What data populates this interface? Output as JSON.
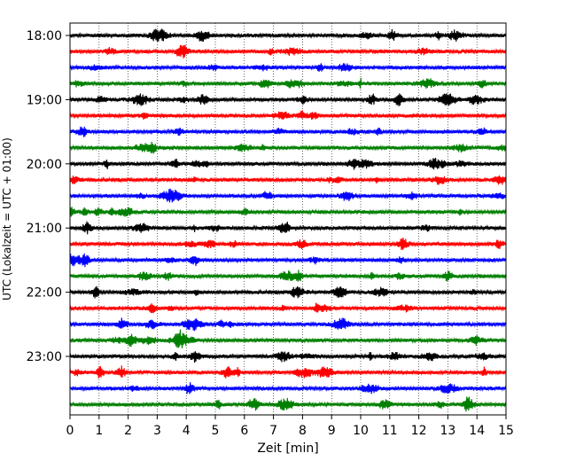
{
  "chart_data": {
    "type": "line",
    "title": "",
    "xlabel": "Zeit  [min]",
    "ylabel": "UTC (Lokalzeit = UTC + 01:00)",
    "xlim": [
      0,
      15
    ],
    "x_ticks": [
      "0",
      "1",
      "2",
      "3",
      "4",
      "5",
      "6",
      "7",
      "8",
      "9",
      "10",
      "11",
      "12",
      "13",
      "14",
      "15"
    ],
    "y_ticks": [
      "18:00",
      "19:00",
      "20:00",
      "21:00",
      "22:00",
      "23:00"
    ],
    "grid": {
      "x": true,
      "y": false,
      "style": "dotted"
    },
    "legend": "none",
    "row_interval_minutes": 15,
    "start_time": "18:00",
    "trace_colors": [
      "#000000",
      "#ff0000",
      "#0000ff",
      "#008000"
    ],
    "series": [
      {
        "time": "18:00",
        "color": "#000000"
      },
      {
        "time": "18:15",
        "color": "#ff0000"
      },
      {
        "time": "18:30",
        "color": "#0000ff"
      },
      {
        "time": "18:45",
        "color": "#008000"
      },
      {
        "time": "19:00",
        "color": "#000000"
      },
      {
        "time": "19:15",
        "color": "#ff0000"
      },
      {
        "time": "19:30",
        "color": "#0000ff"
      },
      {
        "time": "19:45",
        "color": "#008000"
      },
      {
        "time": "20:00",
        "color": "#000000"
      },
      {
        "time": "20:15",
        "color": "#ff0000"
      },
      {
        "time": "20:30",
        "color": "#0000ff"
      },
      {
        "time": "20:45",
        "color": "#008000"
      },
      {
        "time": "21:00",
        "color": "#000000"
      },
      {
        "time": "21:15",
        "color": "#ff0000"
      },
      {
        "time": "21:30",
        "color": "#0000ff"
      },
      {
        "time": "21:45",
        "color": "#008000"
      },
      {
        "time": "22:00",
        "color": "#000000"
      },
      {
        "time": "22:15",
        "color": "#ff0000"
      },
      {
        "time": "22:30",
        "color": "#0000ff"
      },
      {
        "time": "22:45",
        "color": "#008000"
      },
      {
        "time": "23:00",
        "color": "#000000"
      },
      {
        "time": "23:15",
        "color": "#ff0000"
      },
      {
        "time": "23:30",
        "color": "#0000ff"
      },
      {
        "time": "23:45",
        "color": "#008000"
      }
    ]
  }
}
